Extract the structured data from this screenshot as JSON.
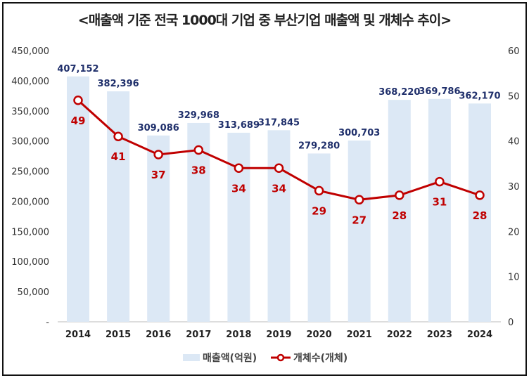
{
  "chart_data": {
    "type": "bar+line",
    "title": "<매출액 기준 전국 1000대 기업 중 부산기업 매출액 및 개체수 추이>",
    "categories": [
      "2014",
      "2015",
      "2016",
      "2017",
      "2018",
      "2019",
      "2020",
      "2021",
      "2022",
      "2023",
      "2024"
    ],
    "series": [
      {
        "name": "매출액(억원)",
        "type": "bar",
        "axis": "left",
        "color": "#dce8f5",
        "label_color": "#1f2f6b",
        "values": [
          407152,
          382396,
          309086,
          329968,
          313689,
          317845,
          279280,
          300703,
          368220,
          369786,
          362170
        ],
        "labels": [
          "407,152",
          "382,396",
          "309,086",
          "329,968",
          "313,689",
          "317,845",
          "279,280",
          "300,703",
          "368,220",
          "369,786",
          "362,170"
        ]
      },
      {
        "name": "개체수(개체)",
        "type": "line",
        "axis": "right",
        "color": "#c00000",
        "values": [
          49,
          41,
          37,
          38,
          34,
          34,
          29,
          27,
          28,
          31,
          28
        ]
      }
    ],
    "left_axis": {
      "ylim": [
        0,
        450000
      ],
      "ticks": [
        "-",
        "50,000",
        "100,000",
        "150,000",
        "200,000",
        "250,000",
        "300,000",
        "350,000",
        "400,000",
        "450,000"
      ]
    },
    "right_axis": {
      "ylim": [
        0,
        60
      ],
      "ticks": [
        "0",
        "10",
        "20",
        "30",
        "40",
        "50",
        "60"
      ]
    },
    "grid": false,
    "legend": "bottom"
  }
}
